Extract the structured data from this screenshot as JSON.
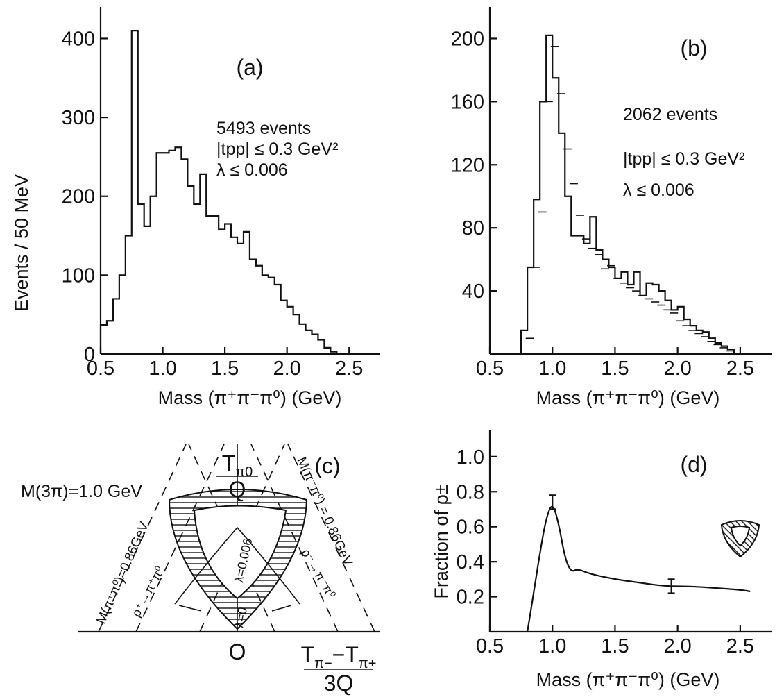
{
  "chart_data": [
    {
      "panel": "(a)",
      "type": "bar",
      "style": "step-histogram",
      "xlabel": "Mass (π⁺π⁻π⁰) (GeV)",
      "ylabel": "Events / 50 MeV",
      "xlim": [
        0.5,
        2.75
      ],
      "ylim": [
        0,
        440
      ],
      "xticks": [
        "0.5",
        "1.0",
        "1.5",
        "2.0",
        "2.5"
      ],
      "yticks": [
        "0",
        "100",
        "200",
        "300",
        "400"
      ],
      "bin_width": 0.05,
      "bin_edges": [
        0.5,
        0.55,
        0.6,
        0.65,
        0.7,
        0.75,
        0.8,
        0.85,
        0.9,
        0.95,
        1.0,
        1.05,
        1.1,
        1.15,
        1.2,
        1.25,
        1.3,
        1.35,
        1.4,
        1.45,
        1.5,
        1.55,
        1.6,
        1.65,
        1.7,
        1.75,
        1.8,
        1.85,
        1.9,
        1.95,
        2.0,
        2.05,
        2.1,
        2.15,
        2.2,
        2.25,
        2.3,
        2.35,
        2.4,
        2.45,
        2.5
      ],
      "values": [
        37,
        42,
        70,
        100,
        150,
        410,
        190,
        162,
        200,
        255,
        255,
        258,
        262,
        247,
        213,
        190,
        228,
        175,
        175,
        158,
        165,
        148,
        140,
        155,
        120,
        112,
        100,
        97,
        88,
        68,
        60,
        50,
        38,
        30,
        25,
        18,
        8,
        3,
        0,
        0
      ],
      "annotations": [
        "5493 events",
        "|tpp| ≤ 0.3 GeV²",
        "λ ≤ 0.006"
      ]
    },
    {
      "panel": "(b)",
      "type": "bar",
      "style": "step-histogram-with-dashed-fit",
      "xlabel": "Mass (π⁺π⁻π⁰) (GeV)",
      "xlim": [
        0.5,
        2.75
      ],
      "ylim": [
        0,
        220
      ],
      "xticks": [
        "0.5",
        "1.0",
        "1.5",
        "2.0",
        "2.5"
      ],
      "yticks": [
        "40",
        "80",
        "120",
        "160",
        "200"
      ],
      "bin_width": 0.05,
      "bin_edges": [
        0.75,
        0.8,
        0.85,
        0.9,
        0.95,
        1.0,
        1.05,
        1.1,
        1.15,
        1.2,
        1.25,
        1.3,
        1.35,
        1.4,
        1.45,
        1.5,
        1.55,
        1.6,
        1.65,
        1.7,
        1.75,
        1.8,
        1.85,
        1.9,
        1.95,
        2.0,
        2.05,
        2.1,
        2.15,
        2.2,
        2.25,
        2.3,
        2.35,
        2.4,
        2.45,
        2.5
      ],
      "values": [
        15,
        55,
        98,
        160,
        202,
        175,
        140,
        100,
        75,
        75,
        70,
        87,
        66,
        60,
        55,
        48,
        52,
        44,
        52,
        37,
        45,
        44,
        40,
        34,
        28,
        30,
        22,
        18,
        15,
        14,
        10,
        7,
        5,
        3,
        0
      ],
      "fit_dashes": [
        [
          0.82,
          10
        ],
        [
          0.87,
          55
        ],
        [
          0.92,
          90
        ],
        [
          0.97,
          160
        ],
        [
          1.02,
          195
        ],
        [
          1.07,
          165
        ],
        [
          1.12,
          130
        ],
        [
          1.17,
          108
        ],
        [
          1.22,
          88
        ],
        [
          1.27,
          73
        ],
        [
          1.32,
          67
        ],
        [
          1.37,
          63
        ],
        [
          1.42,
          54
        ],
        [
          1.47,
          56
        ],
        [
          1.52,
          48
        ],
        [
          1.57,
          45
        ],
        [
          1.62,
          42
        ],
        [
          1.67,
          40
        ],
        [
          1.72,
          37
        ],
        [
          1.77,
          35
        ],
        [
          1.82,
          33
        ],
        [
          1.87,
          31
        ],
        [
          1.92,
          28
        ],
        [
          1.97,
          26
        ],
        [
          2.02,
          21
        ],
        [
          2.07,
          18
        ],
        [
          2.12,
          15
        ],
        [
          2.17,
          13
        ],
        [
          2.22,
          11
        ],
        [
          2.27,
          8
        ],
        [
          2.32,
          6
        ],
        [
          2.37,
          4
        ],
        [
          2.42,
          2
        ]
      ],
      "annotations": [
        "2062 events",
        "|tpp| ≤ 0.3 GeV²",
        "λ ≤ 0.006"
      ]
    },
    {
      "panel": "(c)",
      "type": "diagram",
      "description": "Dalitz plot",
      "labels": {
        "vertical_axis_num": "T",
        "vertical_axis_sub": "π0",
        "vertical_axis_den": "Q",
        "horizontal_axis_num": "T",
        "horizontal_axis_den": "3Q",
        "horizontal_axis_sub1": "π−",
        "horizontal_axis_sub2": "π+",
        "origin": "O",
        "mass_line": "M(3π)=1.0 GeV",
        "left_band": "M(π⁺π⁰)=0.86GeV",
        "right_band": "M(π⁻π⁰) = 0.86GeV",
        "lambda_inner": "λ=0.006",
        "lambda_outer": "λ=0",
        "left_decay": "ρ⁺→π⁺π⁰",
        "right_decay": "ρ⁻→π⁻π⁰"
      }
    },
    {
      "panel": "(d)",
      "type": "line",
      "xlabel": "Mass (π⁺π⁻π⁰) (GeV)",
      "ylabel": "Fraction of ρ±",
      "xlim": [
        0.5,
        2.75
      ],
      "ylim": [
        0.0,
        1.15
      ],
      "xticks": [
        "0.5",
        "1.0",
        "1.5",
        "2.0",
        "2.5"
      ],
      "yticks": [
        "0.2",
        "0.4",
        "0.6",
        "0.8",
        "1.0"
      ],
      "x": [
        0.8,
        0.85,
        0.9,
        0.95,
        1.0,
        1.05,
        1.1,
        1.15,
        1.2,
        1.3,
        1.5,
        1.7,
        1.9,
        2.1,
        2.3,
        2.5,
        2.58
      ],
      "y": [
        0.0,
        0.22,
        0.45,
        0.65,
        0.74,
        0.62,
        0.42,
        0.34,
        0.36,
        0.33,
        0.3,
        0.28,
        0.26,
        0.26,
        0.25,
        0.24,
        0.23
      ],
      "error_bars": [
        {
          "x": 1.0,
          "y": 0.74,
          "err": 0.04
        },
        {
          "x": 1.95,
          "y": 0.26,
          "err": 0.04
        }
      ]
    }
  ]
}
